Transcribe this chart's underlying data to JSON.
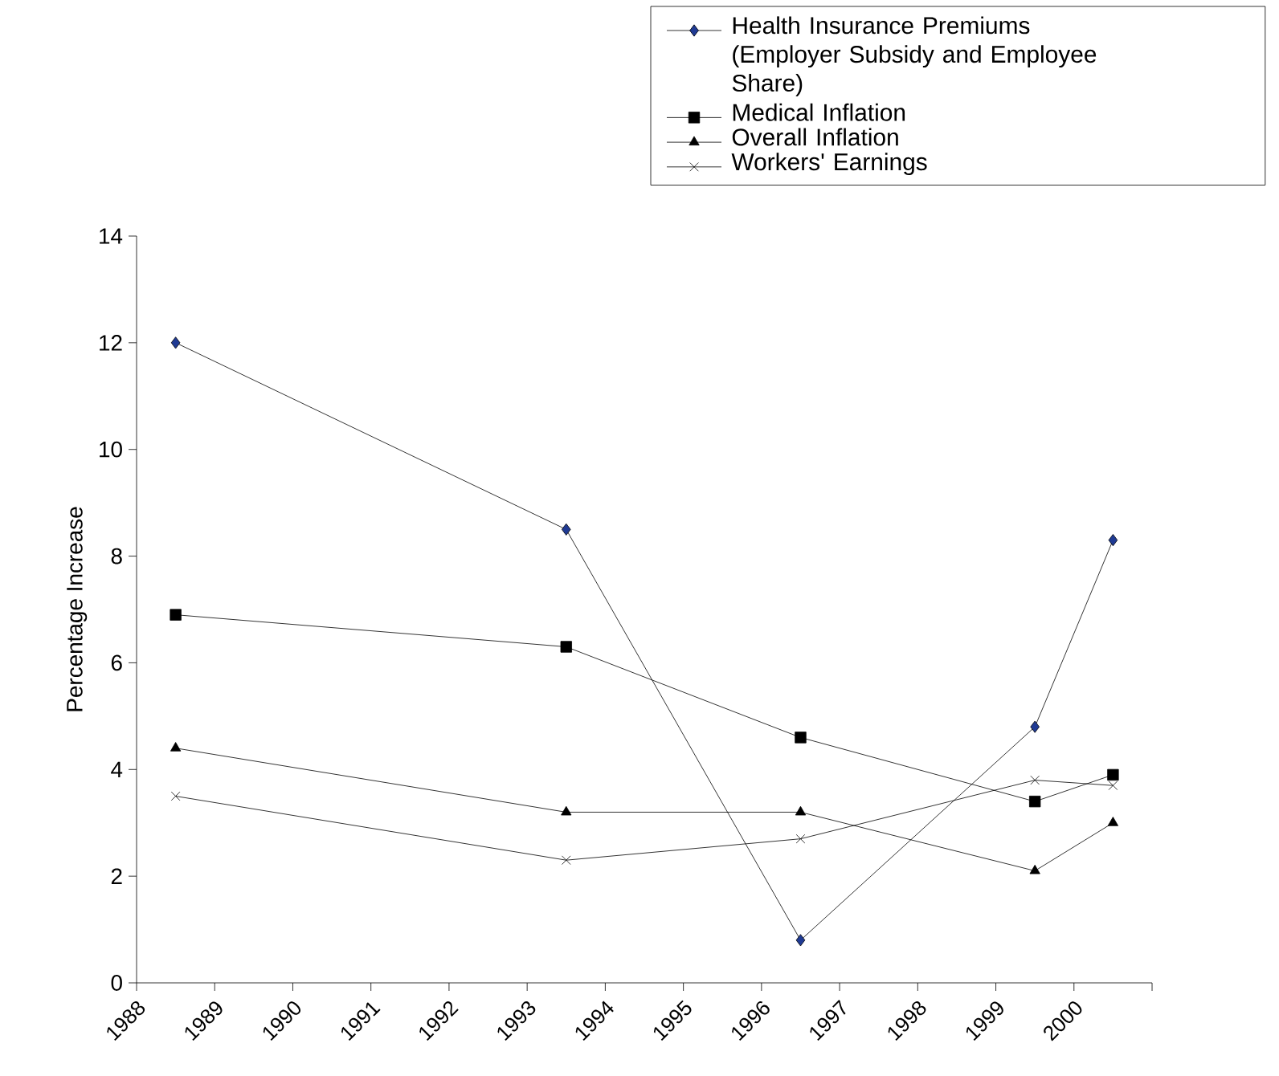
{
  "chart_data": {
    "type": "line",
    "ylabel": "Percentage Increase",
    "xlim": [
      1988,
      2001
    ],
    "xticks": [
      1988,
      1989,
      1990,
      1991,
      1992,
      1993,
      1994,
      1995,
      1996,
      1997,
      1998,
      1999,
      2000,
      {
        "value": 2001,
        "label": null
      }
    ],
    "ylim": [
      0,
      14
    ],
    "yticks": [
      0,
      2,
      4,
      6,
      8,
      10,
      12,
      14
    ],
    "x": [
      1988.5,
      1993.5,
      1996.5,
      1999.5,
      2000.5
    ],
    "legend": "top right",
    "grid": false,
    "line_style": "solid",
    "series": [
      {
        "name": "Health Insurance Premiums (Employer Subsidy and Employee Share)",
        "color": "#1f3a93",
        "marker": "diamond",
        "values": [
          12,
          8.5,
          0.8,
          4.8,
          8.3
        ]
      },
      {
        "name": "Medical Inflation",
        "color": "#000000",
        "marker": "square",
        "values": [
          6.9,
          6.3,
          4.6,
          3.4,
          3.9
        ]
      },
      {
        "name": "Overall Inflation",
        "color": "#000000",
        "marker": "triangle",
        "values": [
          4.4,
          3.2,
          3.2,
          2.1,
          3.0
        ]
      },
      {
        "name": "Workers' Earnings",
        "color": "#000000",
        "marker": "cross",
        "values": [
          3.5,
          2.3,
          2.7,
          3.8,
          3.7
        ]
      }
    ]
  }
}
